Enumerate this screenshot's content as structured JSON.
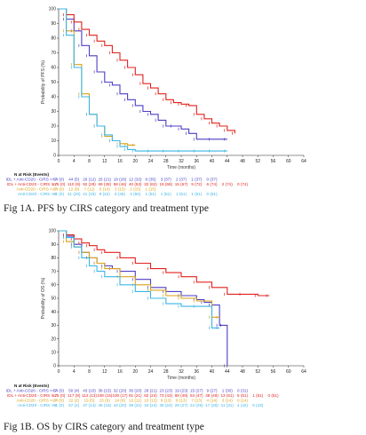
{
  "chart_data": [
    {
      "type": "line",
      "chart_style": "kaplan-meier step",
      "caption": "Fig 1A. PFS by CIRS category and treatment type",
      "ylabel": "Probability of PFS (%)",
      "xlabel": "Time (months)",
      "xlim": [
        0,
        64
      ],
      "ylim": [
        0,
        100
      ],
      "x_ticks": [
        "0",
        "4",
        "8",
        "12",
        "16",
        "20",
        "24",
        "28",
        "32",
        "36",
        "40",
        "44",
        "48",
        "52",
        "56",
        "60",
        "64"
      ],
      "y_ticks": [
        "0",
        "10",
        "20",
        "30",
        "40",
        "50",
        "60",
        "70",
        "80",
        "90",
        "100"
      ],
      "risk_table_header": "N at Risk (Events)",
      "risk_times": [
        0,
        4,
        8,
        12,
        16,
        20,
        24,
        28,
        32,
        36,
        40,
        44,
        48
      ],
      "series": [
        {
          "name": "IDL + Anti-CD20 - CIRS <=7",
          "color": "#4b3fc4",
          "x": [
            0,
            2,
            4,
            6,
            8,
            10,
            12,
            14,
            16,
            18,
            20,
            22,
            24,
            26,
            28,
            30,
            32,
            34,
            36,
            40,
            44
          ],
          "y": [
            100,
            93,
            85,
            75,
            68,
            57,
            50,
            48,
            42,
            38,
            34,
            30,
            28,
            24,
            20,
            20,
            18,
            15,
            11,
            11,
            11
          ],
          "risk": [
            "54 (0)",
            "44 (5)",
            "26 (12)",
            "25 (21)",
            "18 (26)",
            "12 (32)",
            "8 (35)",
            "3 (37)",
            "2 (37)",
            "1 (37)",
            "0 (37)",
            "",
            ""
          ]
        },
        {
          "name": "IDL + Anti-CD20 - CIRS > 7",
          "color": "#e0221d",
          "x": [
            0,
            2,
            4,
            6,
            8,
            10,
            12,
            14,
            16,
            18,
            20,
            22,
            24,
            26,
            28,
            30,
            32,
            34,
            36,
            38,
            40,
            42,
            44,
            46
          ],
          "y": [
            100,
            96,
            91,
            86,
            82,
            78,
            75,
            70,
            65,
            60,
            55,
            49,
            46,
            42,
            38,
            36,
            35,
            34,
            28,
            25,
            22,
            20,
            17,
            15
          ],
          "risk": [
            "125 (0)",
            "110 (9)",
            "92 (28)",
            "69 (38)",
            "58 (46)",
            "40 (53)",
            "32 (62)",
            "19 (68)",
            "15 (67)",
            "9 (72)",
            "6 (74)",
            "2 (74)",
            "0 (74)"
          ]
        },
        {
          "name": "Anti-CD20 - CIRS <=7",
          "color": "#d9a21a",
          "x": [
            0,
            2,
            4,
            6,
            8,
            10,
            12,
            14,
            16,
            18,
            20
          ],
          "y": [
            100,
            85,
            62,
            42,
            28,
            20,
            13,
            10,
            8,
            7,
            7
          ],
          "risk": [
            "24 (0)",
            "12 (9)",
            "7 (12)",
            "5 (14)",
            "3 (15)",
            "2 (15)",
            "1 (15)",
            "",
            "",
            "",
            "",
            "",
            ""
          ]
        },
        {
          "name": "Anti-CD20 - CIRS > 7",
          "color": "#3bb5e6",
          "x": [
            0,
            2,
            4,
            6,
            8,
            10,
            12,
            14,
            16,
            18,
            20,
            24,
            28,
            32,
            36,
            40,
            44
          ],
          "y": [
            100,
            82,
            60,
            40,
            28,
            20,
            14,
            10,
            6,
            4,
            3,
            3,
            3,
            3,
            3,
            3,
            3
          ],
          "risk": [
            "61 (0)",
            "41 (20)",
            "21 (33)",
            "9 (42)",
            "5 (48)",
            "3 (50)",
            "1 (51)",
            "1 (51)",
            "1 (51)",
            "1 (51)",
            "0 (51)",
            "",
            ""
          ]
        }
      ]
    },
    {
      "type": "line",
      "chart_style": "kaplan-meier step",
      "caption": "Fig 1B. OS by CIRS category and treatment type",
      "ylabel": "Probability of OS (%)",
      "xlabel": "Time (months)",
      "xlim": [
        0,
        64
      ],
      "ylim": [
        0,
        100
      ],
      "x_ticks": [
        "0",
        "4",
        "8",
        "12",
        "16",
        "20",
        "24",
        "28",
        "32",
        "36",
        "40",
        "44",
        "48",
        "52",
        "56",
        "60",
        "64"
      ],
      "y_ticks": [
        "0",
        "10",
        "20",
        "30",
        "40",
        "50",
        "60",
        "70",
        "80",
        "90",
        "100"
      ],
      "risk_table_header": "N at Risk (Events)",
      "risk_times": [
        0,
        4,
        8,
        12,
        16,
        20,
        24,
        28,
        32,
        36,
        40,
        44,
        48,
        52,
        56
      ],
      "series": [
        {
          "name": "IDL + Anti-CD20 - CIRS <=7",
          "color": "#4b3fc4",
          "x": [
            0,
            2,
            4,
            6,
            8,
            10,
            12,
            14,
            16,
            20,
            24,
            28,
            32,
            36,
            38,
            40,
            42,
            43,
            44
          ],
          "y": [
            100,
            96,
            90,
            84,
            80,
            76,
            74,
            72,
            70,
            64,
            58,
            55,
            52,
            49,
            47,
            45,
            30,
            30,
            0
          ],
          "risk": [
            "54 (0)",
            "50 (4)",
            "43 (10)",
            "38 (15)",
            "32 (20)",
            "30 (20)",
            "28 (21)",
            "23 (23)",
            "19 (23)",
            "15 (27)",
            "9 (27)",
            "1 (30)",
            "0 (31)",
            "",
            ""
          ]
        },
        {
          "name": "IDL + Anti-CD20 - CIRS > 7",
          "color": "#e0221d",
          "x": [
            0,
            2,
            4,
            6,
            8,
            10,
            12,
            16,
            20,
            24,
            28,
            32,
            36,
            40,
            44,
            48,
            52,
            55
          ],
          "y": [
            100,
            97,
            94,
            91,
            89,
            86,
            84,
            80,
            76,
            72,
            69,
            66,
            62,
            58,
            53,
            53,
            52,
            52
          ],
          "risk": [
            "125 (0)",
            "117 (8)",
            "112 (13)",
            "108 (15)",
            "100 (17)",
            "91 (21)",
            "82 (24)",
            "73 (43)",
            "68 (49)",
            "54 (47)",
            "38 (49)",
            "13 (51)",
            "5 (51)",
            "1 (51)",
            "0 (51)"
          ]
        },
        {
          "name": "Anti-CD20 - CIRS <=7",
          "color": "#d9a21a",
          "x": [
            0,
            2,
            4,
            6,
            8,
            10,
            12,
            16,
            20,
            24,
            28,
            32,
            36,
            40,
            42
          ],
          "y": [
            100,
            92,
            88,
            84,
            80,
            76,
            72,
            66,
            60,
            56,
            52,
            50,
            48,
            36,
            36
          ],
          "risk": [
            "24 (0)",
            "22 (2)",
            "19 (5)",
            "15 (9)",
            "14 (9)",
            "12 (11)",
            "10 (13)",
            "9 (13)",
            "8 (13)",
            "7 (13)",
            "4 (14)",
            "3 (14)",
            "0 (14)",
            "",
            ""
          ]
        },
        {
          "name": "Anti-CD20 - CIRS > 7",
          "color": "#3bb5e6",
          "x": [
            0,
            2,
            4,
            6,
            8,
            10,
            12,
            16,
            20,
            24,
            28,
            32,
            36,
            40,
            42
          ],
          "y": [
            100,
            95,
            88,
            80,
            74,
            70,
            66,
            60,
            55,
            50,
            46,
            44,
            44,
            28,
            28
          ],
          "risk": [
            "61 (0)",
            "57 (4)",
            "47 (14)",
            "46 (15)",
            "43 (20)",
            "38 (21)",
            "34 (24)",
            "30 (24)",
            "28 (27)",
            "24 (25)",
            "17 (26)",
            "11 (31)",
            "4 (42)",
            "0 (43)",
            ""
          ]
        }
      ]
    }
  ]
}
